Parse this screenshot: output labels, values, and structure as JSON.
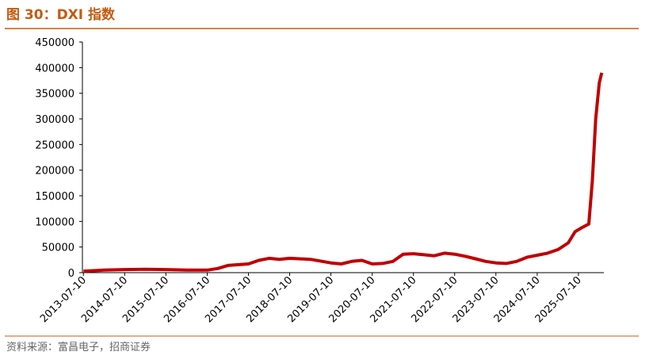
{
  "chart_data": {
    "type": "line",
    "title": "图 30：DXI 指数",
    "source": "资料来源：富昌电子，招商证券",
    "x": [
      "2013-07-10",
      "2014-01-10",
      "2014-07-10",
      "2015-01-10",
      "2015-07-10",
      "2016-01-10",
      "2016-07-10",
      "2016-10-10",
      "2017-01-10",
      "2017-07-10",
      "2017-10-10",
      "2018-01-10",
      "2018-04-10",
      "2018-07-10",
      "2019-01-10",
      "2019-07-10",
      "2019-10-10",
      "2020-01-10",
      "2020-04-10",
      "2020-07-10",
      "2020-10-10",
      "2021-01-10",
      "2021-04-10",
      "2021-07-10",
      "2021-10-10",
      "2022-01-10",
      "2022-04-10",
      "2022-07-10",
      "2022-10-10",
      "2023-01-10",
      "2023-04-10",
      "2023-07-10",
      "2023-10-10",
      "2024-01-10",
      "2024-04-10",
      "2024-07-10",
      "2024-10-10",
      "2025-01-10",
      "2025-04-10",
      "2025-06-10",
      "2025-08-10",
      "2025-10-10",
      "2025-11-10",
      "2025-12-10",
      "2026-01-10",
      "2026-02-01"
    ],
    "series": [
      {
        "name": "DXI",
        "color": "#c00000",
        "values": [
          3000,
          5000,
          6000,
          6500,
          6000,
          5000,
          5000,
          8000,
          14000,
          17000,
          24000,
          28000,
          26000,
          28000,
          26000,
          19000,
          17000,
          22000,
          24000,
          17000,
          18000,
          22000,
          36000,
          37000,
          35000,
          33000,
          38000,
          36000,
          32000,
          27000,
          22000,
          19000,
          18000,
          22000,
          30000,
          34000,
          38000,
          45000,
          58000,
          80000,
          88000,
          95000,
          180000,
          300000,
          370000,
          390000
        ]
      }
    ],
    "xlim": [
      "2013-07-01",
      "2026-02-20"
    ],
    "xticks": [
      "2013-07-10",
      "2014-07-10",
      "2015-07-10",
      "2016-07-10",
      "2017-07-10",
      "2018-07-10",
      "2019-07-10",
      "2020-07-10",
      "2021-07-10",
      "2022-07-10",
      "2023-07-10",
      "2024-07-10",
      "2025-07-10"
    ],
    "ylim": [
      0,
      450000
    ],
    "yticks": [
      0,
      50000,
      100000,
      150000,
      200000,
      250000,
      300000,
      350000,
      400000,
      450000
    ]
  }
}
